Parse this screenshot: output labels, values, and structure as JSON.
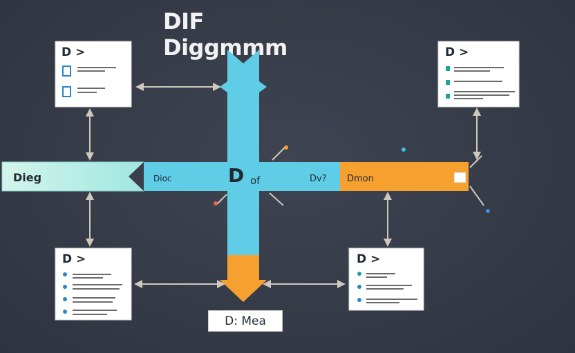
{
  "title": "DIF Diggmmm",
  "left_bar_label": "Dieg",
  "center_bar_left_label": "Dioc",
  "center_label_d": "D",
  "center_label_of": "of",
  "center_bar_right_label": "Dv?",
  "orange_bar_label": "Dmon",
  "caption": "D: Mea",
  "cards": {
    "top_left": {
      "title": "D >"
    },
    "top_right": {
      "title": "D >"
    },
    "bottom_left": {
      "title": "D >"
    },
    "bottom_right": {
      "title": "D >"
    }
  },
  "colors": {
    "cyan": "#5fcde6",
    "mint": "#bff0e6",
    "orange": "#f6a030",
    "arrow": "#cfc8bc",
    "background": "#3b3f4b",
    "teal_icon": "#1aa39a",
    "blue_icon": "#2a86c6"
  }
}
